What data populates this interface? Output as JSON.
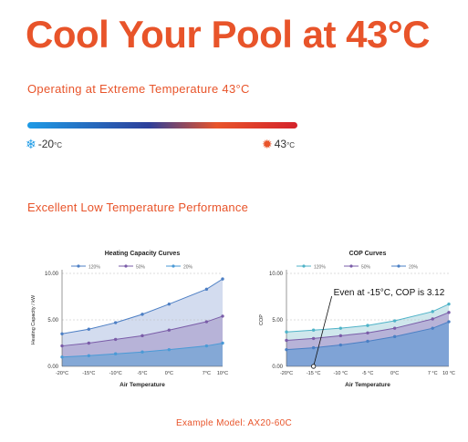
{
  "header": {
    "title": "Cool Your Pool at 43°C",
    "subtitle": "Operating at Extreme Temperature 43°C"
  },
  "temperature_range": {
    "low_value": "-20",
    "low_unit": "°C",
    "high_value": "43",
    "high_unit": "°C",
    "low_icon": "snowflake-icon",
    "high_icon": "sun-icon",
    "gradient_colors": [
      "#1e9be6",
      "#2d3f9a",
      "#e8542a",
      "#d4232b"
    ]
  },
  "section": {
    "heading": "Excellent Low Temperature Performance"
  },
  "footer": {
    "model": "Example Model: AX20-60C"
  },
  "chart_data": [
    {
      "type": "area",
      "title": "Heating Capacity Curves",
      "xlabel": "Air Temperature",
      "ylabel": "Heating Capacity / kW",
      "categories": [
        "-20°C",
        "-15°C",
        "-10°C",
        "-5°C",
        "0°C",
        "7°C",
        "10°C"
      ],
      "x": [
        -20,
        -15,
        -10,
        -5,
        0,
        7,
        10
      ],
      "ylim": [
        0,
        10
      ],
      "yticks": [
        "0.00",
        "5.00",
        "10.00"
      ],
      "legend_position": "top",
      "series": [
        {
          "name": "120%",
          "color": "#4d7fc4",
          "fill": "#d3dcef",
          "values": [
            3.5,
            4.0,
            4.7,
            5.6,
            6.7,
            8.3,
            9.4
          ]
        },
        {
          "name": "50%",
          "color": "#7a5ca8",
          "fill": "#b7b3d8",
          "values": [
            2.2,
            2.5,
            2.9,
            3.3,
            3.9,
            4.8,
            5.4
          ]
        },
        {
          "name": "20%",
          "color": "#4a9ad6",
          "fill": "#84a8d6",
          "values": [
            1.0,
            1.15,
            1.35,
            1.55,
            1.8,
            2.2,
            2.5
          ]
        }
      ]
    },
    {
      "type": "area",
      "title": "COP Curves",
      "xlabel": "Air Temperature",
      "ylabel": "COP",
      "categories": [
        "-20°C",
        "-15 °C",
        "-10 °C",
        "-5 °C",
        "0°C",
        "7 °C",
        "10 °C"
      ],
      "x": [
        -20,
        -15,
        -10,
        -5,
        0,
        7,
        10
      ],
      "ylim": [
        0,
        10
      ],
      "yticks": [
        "0.00",
        "5.00",
        "10.00"
      ],
      "legend_position": "top",
      "annotation": {
        "text": "Even at -15°C, COP is 3.12",
        "x": -15,
        "y": 0
      },
      "series": [
        {
          "name": "120%",
          "color": "#4fb3c8",
          "fill": "#cfe7ec",
          "values": [
            3.7,
            3.9,
            4.1,
            4.4,
            4.9,
            5.9,
            6.7
          ]
        },
        {
          "name": "50%",
          "color": "#7a5ca8",
          "fill": "#b7b3d8",
          "values": [
            2.8,
            3.0,
            3.3,
            3.6,
            4.1,
            5.1,
            5.8
          ]
        },
        {
          "name": "20%",
          "color": "#4a7fc4",
          "fill": "#7fa3d6",
          "values": [
            1.8,
            2.0,
            2.3,
            2.7,
            3.2,
            4.1,
            4.8
          ]
        }
      ]
    }
  ]
}
